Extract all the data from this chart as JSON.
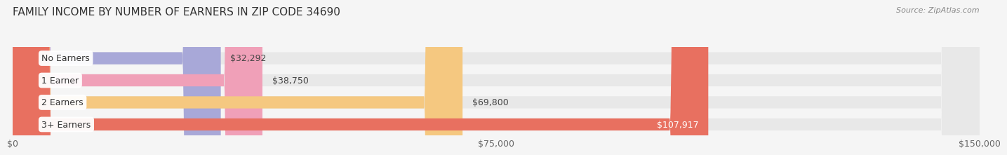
{
  "title": "FAMILY INCOME BY NUMBER OF EARNERS IN ZIP CODE 34690",
  "source": "Source: ZipAtlas.com",
  "categories": [
    "No Earners",
    "1 Earner",
    "2 Earners",
    "3+ Earners"
  ],
  "values": [
    32292,
    38750,
    69800,
    107917
  ],
  "bar_colors": [
    "#a8a8d8",
    "#f0a0b8",
    "#f5c880",
    "#e87060"
  ],
  "bar_bg_color": "#e8e8e8",
  "value_labels": [
    "$32,292",
    "$38,750",
    "$69,800",
    "$107,917"
  ],
  "label_colors": [
    "#444444",
    "#444444",
    "#444444",
    "#ffffff"
  ],
  "xlim": [
    0,
    150000
  ],
  "xticks": [
    0,
    75000,
    150000
  ],
  "xticklabels": [
    "$0",
    "$75,000",
    "$150,000"
  ],
  "background_color": "#f5f5f5",
  "bar_height": 0.55,
  "title_fontsize": 11,
  "label_fontsize": 9,
  "tick_fontsize": 9,
  "source_fontsize": 8
}
